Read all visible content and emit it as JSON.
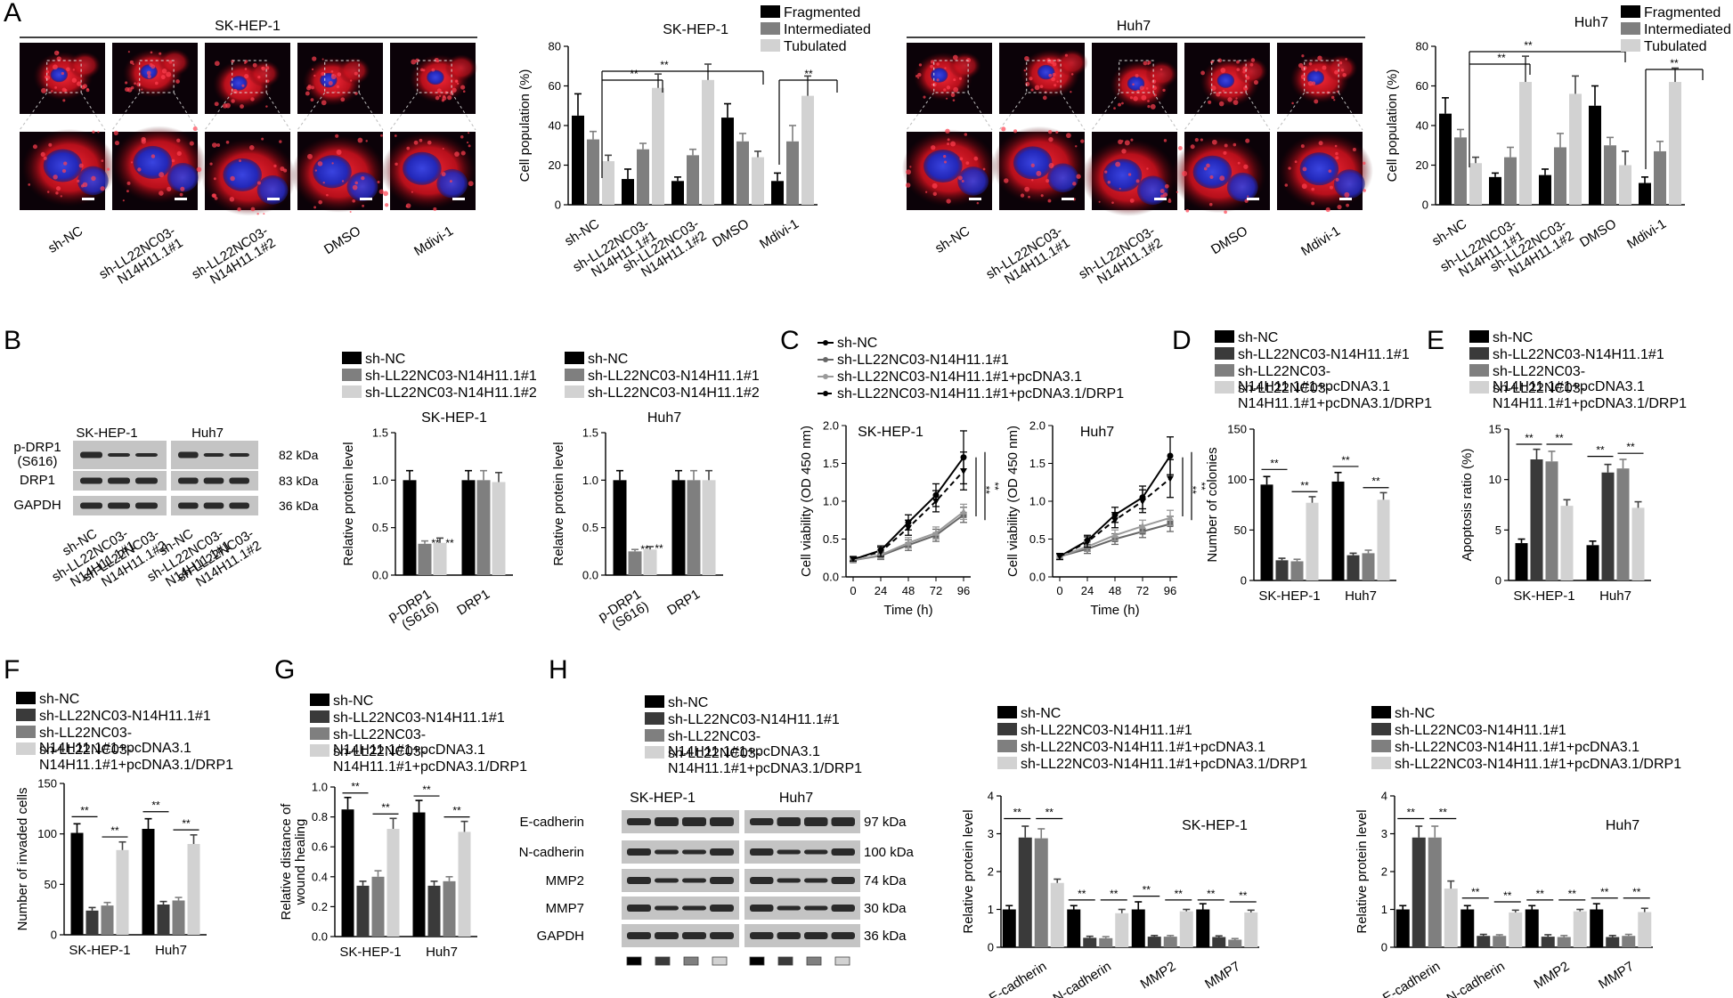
{
  "colors": {
    "black": "#000000",
    "dark_gray": "#3a3a3a",
    "mid_gray": "#7f7f7f",
    "light_gray": "#d2d2d2",
    "micro_bg": "#0b0208",
    "micro_red": "#d0101c",
    "micro_blue": "#2227b8"
  },
  "panel_labels": [
    "A",
    "B",
    "C",
    "D",
    "E",
    "F",
    "G",
    "H"
  ],
  "panel_A": {
    "lines": [
      "SK-HEP-1",
      "Huh7"
    ],
    "micro_labels": [
      "sh-NC",
      "sh-LL22NC03-\nN14H11.1#1",
      "sh-LL22NC03-\nN14H11.1#2",
      "DMSO",
      "Mdivi-1"
    ]
  },
  "panel_B": {
    "blot_rows": [
      "p-DRP1\n(S616)",
      "DRP1",
      "GAPDH"
    ],
    "kda": [
      "82 kDa",
      "83 kDa",
      "36 kDa"
    ],
    "lanes": [
      "sh-NC",
      "sh-LL22NC03-\nN14H11.1#1",
      "sh-LL22NC03-\nN14H11.1#2"
    ],
    "legend": [
      "sh-NC",
      "sh-LL22NC03-N14H11.1#1",
      "sh-LL22NC03-N14H11.1#2"
    ]
  },
  "legends": {
    "four_group": [
      "sh-NC",
      "sh-LL22NC03-N14H11.1#1",
      "sh-LL22NC03-\nN14H11.1#1+pcDNA3.1",
      "sh-LL22NC03-\nN14H11.1#1+pcDNA3.1/DRP1"
    ],
    "four_group_single": [
      "sh-NC",
      "sh-LL22NC03-N14H11.1#1",
      "sh-LL22NC03-N14H11.1#1+pcDNA3.1",
      "sh-LL22NC03-N14H11.1#1+pcDNA3.1/DRP1"
    ],
    "four_group_G": [
      "sh-NC",
      "sh-LL22NC03-N14H11.1#1",
      "sh-LL22NC03-\nN14H11.1#1+pcDNA3.1",
      "sh-LL22NC03-\nN14H11.1#1+pcDNA3.1/DRP1"
    ]
  },
  "panel_H": {
    "blot_rows": [
      "E-cadherin",
      "N-cadherin",
      "MMP2",
      "MMP7",
      "GAPDH"
    ],
    "kda": [
      "97 kDa",
      "100 kDa",
      "74 kDa",
      "30 kDa",
      "36 kDa"
    ]
  },
  "significance": "**",
  "chart_data": [
    {
      "id": "A_skhep",
      "type": "bar",
      "title": "SK-HEP-1",
      "categories": [
        "sh-NC",
        "sh-LL22NC03-\nN14H11.1#1",
        "sh-LL22NC03-\nN14H11.1#2",
        "DMSO",
        "Mdivi-1"
      ],
      "series": [
        {
          "name": "Fragmented",
          "values": [
            45,
            13,
            12,
            44,
            12
          ],
          "err": [
            11,
            5,
            2,
            7,
            4
          ]
        },
        {
          "name": "Intermediated",
          "values": [
            33,
            28,
            25,
            32,
            32
          ],
          "err": [
            4,
            3,
            3,
            4,
            8
          ]
        },
        {
          "name": "Tubulated",
          "values": [
            22,
            59,
            63,
            24,
            55
          ],
          "err": [
            3,
            7,
            8,
            3,
            10
          ]
        }
      ],
      "ylabel": "Cell population (%)",
      "ylim": [
        0,
        80
      ],
      "yticks": [
        0,
        20,
        40,
        60,
        80
      ]
    },
    {
      "id": "A_huh7",
      "type": "bar",
      "title": "Huh7",
      "categories": [
        "sh-NC",
        "sh-LL22NC03-\nN14H11.1#1",
        "sh-LL22NC03-\nN14H11.1#2",
        "DMSO",
        "Mdivi-1"
      ],
      "series": [
        {
          "name": "Fragmented",
          "values": [
            46,
            14,
            15,
            50,
            11
          ],
          "err": [
            8,
            2,
            3,
            10,
            3
          ]
        },
        {
          "name": "Intermediated",
          "values": [
            34,
            24,
            29,
            30,
            27
          ],
          "err": [
            4,
            5,
            7,
            4,
            5
          ]
        },
        {
          "name": "Tubulated",
          "values": [
            21,
            62,
            56,
            20,
            62
          ],
          "err": [
            3,
            13,
            9,
            7,
            7
          ]
        }
      ],
      "ylabel": "Cell population (%)",
      "ylim": [
        0,
        80
      ],
      "yticks": [
        0,
        20,
        40,
        60,
        80
      ]
    },
    {
      "id": "B_skhep",
      "type": "bar",
      "title": "SK-HEP-1",
      "categories": [
        "p-DRP1\n(S616)",
        "DRP1"
      ],
      "series": [
        {
          "name": "sh-NC",
          "values": [
            1.0,
            1.0
          ],
          "err": [
            0.1,
            0.1
          ]
        },
        {
          "name": "sh-LL22NC03-N14H11.1#1",
          "values": [
            0.33,
            1.0
          ],
          "err": [
            0.03,
            0.1
          ]
        },
        {
          "name": "sh-LL22NC03-N14H11.1#2",
          "values": [
            0.34,
            0.98
          ],
          "err": [
            0.05,
            0.1
          ]
        }
      ],
      "ylabel": "Relative protein level",
      "ylim": [
        0,
        1.5
      ],
      "yticks": [
        0.0,
        0.5,
        1.0,
        1.5
      ]
    },
    {
      "id": "B_huh7",
      "type": "bar",
      "title": "Huh7",
      "categories": [
        "p-DRP1\n(S616)",
        "DRP1"
      ],
      "series": [
        {
          "name": "sh-NC",
          "values": [
            1.0,
            1.0
          ],
          "err": [
            0.1,
            0.1
          ]
        },
        {
          "name": "sh-LL22NC03-N14H11.1#1",
          "values": [
            0.25,
            1.0
          ],
          "err": [
            0.02,
            0.1
          ]
        },
        {
          "name": "sh-LL22NC03-N14H11.1#2",
          "values": [
            0.27,
            1.0
          ],
          "err": [
            0.03,
            0.1
          ]
        }
      ],
      "ylabel": "Relative protein level",
      "ylim": [
        0,
        1.5
      ],
      "yticks": [
        0.0,
        0.5,
        1.0,
        1.5
      ]
    },
    {
      "id": "C_skhep",
      "type": "line",
      "title": "SK-HEP-1",
      "x": [
        0,
        24,
        48,
        72,
        96
      ],
      "series": [
        {
          "name": "sh-NC",
          "values": [
            0.23,
            0.35,
            0.72,
            1.08,
            1.58
          ],
          "err": [
            0.03,
            0.06,
            0.1,
            0.15,
            0.35
          ]
        },
        {
          "name": "sh-LL22NC03-N14H11.1#1",
          "values": [
            0.22,
            0.28,
            0.42,
            0.55,
            0.82
          ],
          "err": [
            0.03,
            0.05,
            0.07,
            0.08,
            0.1
          ]
        },
        {
          "name": "sh-LL22NC03-N14H11.1#1+pcDNA3.1",
          "values": [
            0.22,
            0.29,
            0.45,
            0.58,
            0.86
          ],
          "err": [
            0.03,
            0.05,
            0.07,
            0.08,
            0.1
          ]
        },
        {
          "name": "sh-LL22NC03-N14H11.1#1+pcDNA3.1/DRP1",
          "values": [
            0.24,
            0.33,
            0.65,
            1.0,
            1.4
          ],
          "err": [
            0.03,
            0.06,
            0.1,
            0.14,
            0.25
          ]
        }
      ],
      "xlabel": "Time (h)",
      "ylabel": "Cell viability (OD 450 nm)",
      "ylim": [
        0,
        2.0
      ],
      "yticks": [
        0.0,
        0.5,
        1.0,
        1.5,
        2.0
      ]
    },
    {
      "id": "C_huh7",
      "type": "line",
      "title": "Huh7",
      "x": [
        0,
        24,
        48,
        72,
        96
      ],
      "series": [
        {
          "name": "sh-NC",
          "values": [
            0.27,
            0.48,
            0.82,
            1.05,
            1.6
          ],
          "err": [
            0.04,
            0.07,
            0.1,
            0.15,
            0.25
          ]
        },
        {
          "name": "sh-LL22NC03-N14H11.1#1",
          "values": [
            0.27,
            0.37,
            0.5,
            0.6,
            0.7
          ],
          "err": [
            0.04,
            0.06,
            0.07,
            0.08,
            0.1
          ]
        },
        {
          "name": "sh-LL22NC03-N14H11.1#1+pcDNA3.1",
          "values": [
            0.27,
            0.4,
            0.55,
            0.67,
            0.78
          ],
          "err": [
            0.04,
            0.06,
            0.07,
            0.08,
            0.1
          ]
        },
        {
          "name": "sh-LL22NC03-N14H11.1#1+pcDNA3.1/DRP1",
          "values": [
            0.27,
            0.46,
            0.75,
            1.0,
            1.3
          ],
          "err": [
            0.04,
            0.07,
            0.1,
            0.15,
            0.25
          ]
        }
      ],
      "xlabel": "Time (h)",
      "ylabel": "Cell viability (OD 450 nm)",
      "ylim": [
        0,
        2.0
      ],
      "yticks": [
        0.0,
        0.5,
        1.0,
        1.5,
        2.0
      ]
    },
    {
      "id": "D",
      "type": "bar",
      "categories": [
        "SK-HEP-1",
        "Huh7"
      ],
      "series": [
        {
          "name": "sh-NC",
          "values": [
            95,
            98
          ],
          "err": [
            8,
            9
          ]
        },
        {
          "name": "sh-LL22NC03-N14H11.1#1",
          "values": [
            20,
            25
          ],
          "err": [
            2,
            2
          ]
        },
        {
          "name": "sh-LL22NC03-N14H11.1#1+pcDNA3.1",
          "values": [
            19,
            27
          ],
          "err": [
            2,
            3
          ]
        },
        {
          "name": "sh-LL22NC03-N14H11.1#1+pcDNA3.1/DRP1",
          "values": [
            77,
            80
          ],
          "err": [
            6,
            7
          ]
        }
      ],
      "ylabel": "Number of colonies",
      "ylim": [
        0,
        150
      ],
      "yticks": [
        0,
        50,
        100,
        150
      ]
    },
    {
      "id": "E",
      "type": "bar",
      "categories": [
        "SK-HEP-1",
        "Huh7"
      ],
      "series": [
        {
          "name": "sh-NC",
          "values": [
            3.7,
            3.5
          ],
          "err": [
            0.4,
            0.4
          ]
        },
        {
          "name": "sh-LL22NC03-N14H11.1#1",
          "values": [
            12,
            10.7
          ],
          "err": [
            1.0,
            0.8
          ]
        },
        {
          "name": "sh-LL22NC03-N14H11.1#1+pcDNA3.1",
          "values": [
            11.8,
            11.1
          ],
          "err": [
            1.0,
            0.9
          ]
        },
        {
          "name": "sh-LL22NC03-N14H11.1#1+pcDNA3.1/DRP1",
          "values": [
            7.4,
            7.2
          ],
          "err": [
            0.6,
            0.6
          ]
        }
      ],
      "ylabel": "Apoptosis ratio (%)",
      "ylim": [
        0,
        15
      ],
      "yticks": [
        0,
        5,
        10,
        15
      ]
    },
    {
      "id": "F",
      "type": "bar",
      "categories": [
        "SK-HEP-1",
        "Huh7"
      ],
      "series": [
        {
          "name": "sh-NC",
          "values": [
            101,
            105
          ],
          "err": [
            9,
            10
          ]
        },
        {
          "name": "sh-LL22NC03-N14H11.1#1",
          "values": [
            24,
            30
          ],
          "err": [
            3,
            3
          ]
        },
        {
          "name": "sh-LL22NC03-N14H11.1#1+pcDNA3.1",
          "values": [
            29,
            34
          ],
          "err": [
            3,
            3
          ]
        },
        {
          "name": "sh-LL22NC03-N14H11.1#1+pcDNA3.1/DRP1",
          "values": [
            84,
            90
          ],
          "err": [
            8,
            9
          ]
        }
      ],
      "ylabel": "Number of invaded cells",
      "ylim": [
        0,
        150
      ],
      "yticks": [
        0,
        50,
        100,
        150
      ]
    },
    {
      "id": "G",
      "type": "bar",
      "categories": [
        "SK-HEP-1",
        "Huh7"
      ],
      "series": [
        {
          "name": "sh-NC",
          "values": [
            0.85,
            0.83
          ],
          "err": [
            0.08,
            0.08
          ]
        },
        {
          "name": "sh-LL22NC03-N14H11.1#1",
          "values": [
            0.34,
            0.34
          ],
          "err": [
            0.03,
            0.03
          ]
        },
        {
          "name": "sh-LL22NC03-N14H11.1#1+pcDNA3.1",
          "values": [
            0.4,
            0.37
          ],
          "err": [
            0.04,
            0.03
          ]
        },
        {
          "name": "sh-LL22NC03-N14H11.1#1+pcDNA3.1/DRP1",
          "values": [
            0.72,
            0.7
          ],
          "err": [
            0.07,
            0.07
          ]
        }
      ],
      "ylabel": "Relative distance of\nwound healing",
      "ylim": [
        0,
        1.0
      ],
      "yticks": [
        0.0,
        0.2,
        0.4,
        0.6,
        0.8,
        1.0
      ]
    },
    {
      "id": "H_skhep",
      "type": "bar",
      "title": "SK-HEP-1",
      "categories": [
        "E-cadherin",
        "N-cadherin",
        "MMP2",
        "MMP7"
      ],
      "series": [
        {
          "name": "sh-NC",
          "values": [
            1.0,
            1.0,
            1.0,
            1.0
          ],
          "err": [
            0.1,
            0.1,
            0.2,
            0.15
          ]
        },
        {
          "name": "sh-LL22NC03-N14H11.1#1",
          "values": [
            2.9,
            0.25,
            0.28,
            0.27
          ],
          "err": [
            0.3,
            0.04,
            0.03,
            0.03
          ]
        },
        {
          "name": "sh-LL22NC03-N14H11.1#1+pcDNA3.1",
          "values": [
            2.88,
            0.24,
            0.28,
            0.2
          ],
          "err": [
            0.25,
            0.04,
            0.03,
            0.03
          ]
        },
        {
          "name": "sh-LL22NC03-N14H11.1#1+pcDNA3.1/DRP1",
          "values": [
            1.7,
            0.9,
            0.95,
            0.92
          ],
          "err": [
            0.1,
            0.1,
            0.05,
            0.06
          ]
        }
      ],
      "ylabel": "Relative protein level",
      "ylim": [
        0,
        4
      ],
      "yticks": [
        0,
        1,
        2,
        3,
        4
      ]
    },
    {
      "id": "H_huh7",
      "type": "bar",
      "title": "Huh7",
      "categories": [
        "E-cadherin",
        "N-cadherin",
        "MMP2",
        "MMP7"
      ],
      "series": [
        {
          "name": "sh-NC",
          "values": [
            1.0,
            1.0,
            1.0,
            1.0
          ],
          "err": [
            0.1,
            0.1,
            0.1,
            0.15
          ]
        },
        {
          "name": "sh-LL22NC03-N14H11.1#1",
          "values": [
            2.9,
            0.3,
            0.28,
            0.27
          ],
          "err": [
            0.3,
            0.04,
            0.05,
            0.04
          ]
        },
        {
          "name": "sh-LL22NC03-N14H11.1#1+pcDNA3.1",
          "values": [
            2.9,
            0.3,
            0.27,
            0.3
          ],
          "err": [
            0.3,
            0.03,
            0.04,
            0.04
          ]
        },
        {
          "name": "sh-LL22NC03-N14H11.1#1+pcDNA3.1/DRP1",
          "values": [
            1.55,
            0.92,
            0.95,
            0.93
          ],
          "err": [
            0.2,
            0.06,
            0.05,
            0.1
          ]
        }
      ],
      "ylabel": "Relative protein level",
      "ylim": [
        0,
        4
      ],
      "yticks": [
        0,
        1,
        2,
        3,
        4
      ]
    }
  ]
}
